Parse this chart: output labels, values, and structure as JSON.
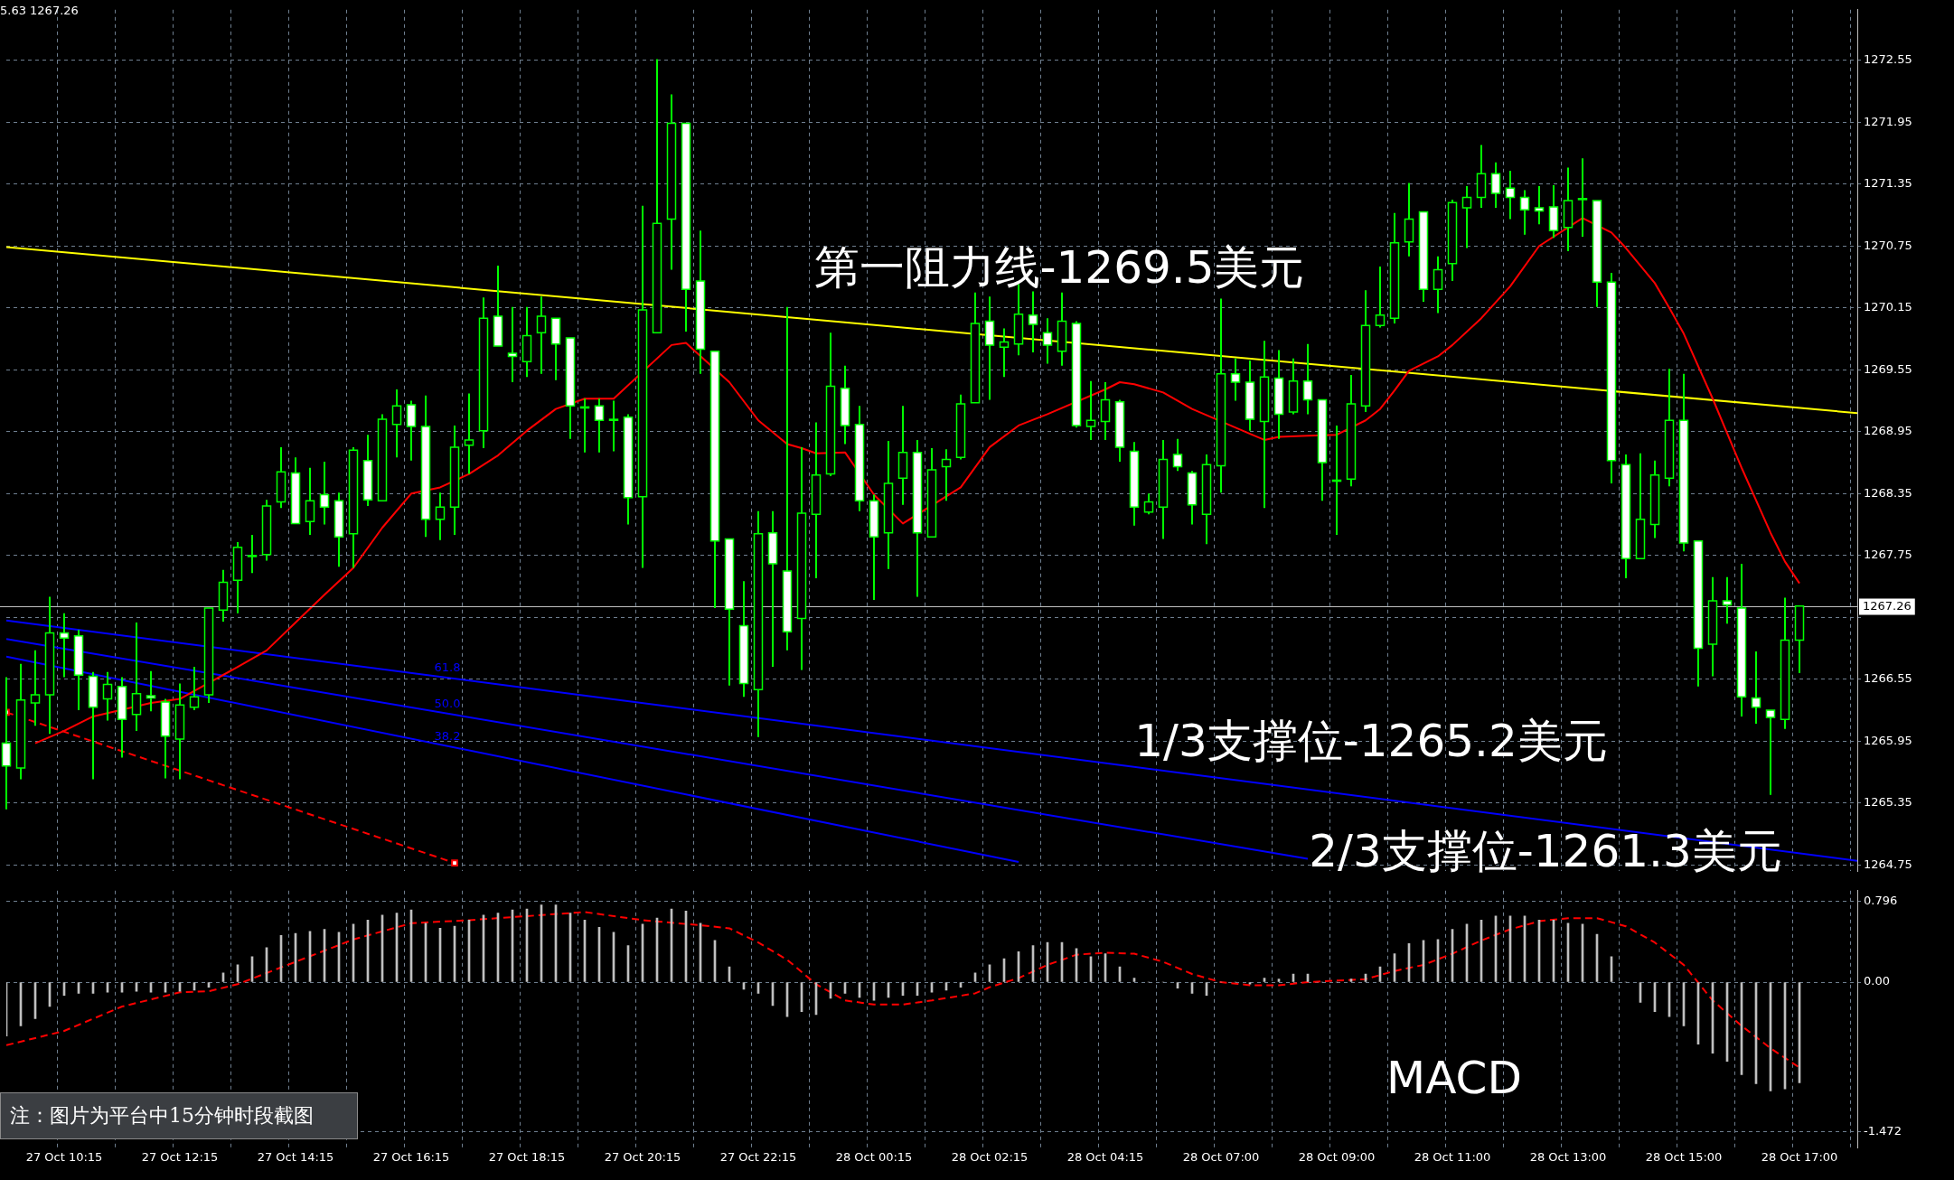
{
  "chart_data": [
    {
      "type": "candlestick",
      "color": "#00ff00",
      "colors": [
        "#ffffff",
        "#000000",
        "#000000",
        "#000000",
        "#ffffff",
        "#ffffff",
        "#ffffff",
        "#000000",
        "#ffffff",
        "#000000",
        "#ffffff",
        "#ffffff",
        "#000000",
        "#000000",
        "#000000",
        "#000000",
        "#000000",
        "#000000",
        "#000000",
        "#000000",
        "#ffffff",
        "#000000",
        "#ffffff",
        "#ffffff",
        "#000000",
        "#ffffff",
        "#000000",
        "#000000",
        "#ffffff",
        "#ffffff",
        "#000000",
        "#000000",
        "#000000",
        "#000000",
        "#ffffff",
        "#ffffff",
        "#000000",
        "#000000",
        "#ffffff",
        "#ffffff",
        "#ffffff",
        "#ffffff",
        "#ffffff",
        "#ffffff",
        "#000000",
        "#000000",
        "#000000",
        "#ffffff",
        "#ffffff",
        "#ffffff",
        "#ffffff",
        "#ffffff",
        "#000000",
        "#ffffff",
        "#ffffff",
        "#000000",
        "#000000",
        "#000000",
        "#ffffff",
        "#ffffff",
        "#ffffff",
        "#000000",
        "#000000",
        "#ffffff",
        "#000000",
        "#000000",
        "#000000",
        "#000000",
        "#ffffff",
        "#000000",
        "#000000",
        "#ffffff",
        "#ffffff",
        "#000000",
        "#ffffff",
        "#000000",
        "#000000",
        "#ffffff",
        "#ffffff",
        "#000000",
        "#000000",
        "#ffffff",
        "#ffffff",
        "#000000",
        "#000000",
        "#ffffff",
        "#ffffff",
        "#000000",
        "#ffffff",
        "#000000",
        "#ffffff",
        "#ffffff",
        "#ffffff",
        "#000000",
        "#000000",
        "#000000",
        "#000000",
        "#000000",
        "#ffffff",
        "#000000",
        "#000000",
        "#000000",
        "#000000",
        "#ffffff",
        "#ffffff",
        "#ffffff",
        "#ffffff",
        "#ffffff",
        "#000000",
        "#ffffff",
        "#ffffff",
        "#ffffff",
        "#ffffff",
        "#000000",
        "#000000",
        "#000000",
        "#ffffff",
        "#ffffff",
        "#000000",
        "#ffffff",
        "#ffffff",
        "#ffffff",
        "#ffffff",
        "#000000",
        "#000000",
        null,
        null,
        null,
        null
      ],
      "categories": [
        null,
        null,
        null,
        null,
        null,
        null,
        null,
        null,
        null,
        null,
        null,
        null,
        null,
        null,
        null,
        null,
        null,
        null,
        null,
        null,
        null,
        null,
        null,
        null,
        null,
        null,
        null,
        null,
        null,
        null,
        null,
        null,
        null,
        null,
        null,
        null,
        null,
        null,
        null,
        null,
        null,
        null,
        null,
        null,
        null,
        null,
        null,
        null,
        null,
        null,
        null,
        null,
        null,
        null,
        null,
        null,
        null,
        null,
        null,
        null,
        null,
        null,
        null,
        null,
        null,
        null,
        null,
        null,
        null,
        null,
        null,
        null,
        null,
        null,
        null,
        null,
        null,
        null,
        null,
        null,
        null,
        null,
        null,
        null,
        null,
        null,
        null,
        null,
        null,
        null,
        null,
        null,
        null,
        null,
        null,
        null,
        null,
        null,
        null,
        null,
        null,
        null,
        null,
        null,
        null,
        null,
        null,
        null,
        null,
        null,
        null,
        null,
        null,
        null,
        null,
        null,
        null,
        null,
        null,
        null,
        null,
        null,
        null,
        null,
        null,
        null,
        null,
        null,
        null
      ],
      "ohlc": [
        [
          1265.93,
          1266.57,
          1265.29,
          1265.71
        ],
        [
          1265.69,
          1266.7,
          1265.58,
          1266.35
        ],
        [
          1266.32,
          1266.83,
          1266.1,
          1266.4
        ],
        [
          1266.4,
          1267.35,
          1266.02,
          1267.0
        ],
        [
          1267.0,
          1267.19,
          1266.57,
          1266.95
        ],
        [
          1266.97,
          1267.03,
          1266.25,
          1266.59
        ],
        [
          1266.58,
          1266.62,
          1265.58,
          1266.28
        ],
        [
          1266.36,
          1266.62,
          1266.15,
          1266.5
        ],
        [
          1266.48,
          1266.57,
          1265.79,
          1266.16
        ],
        [
          1266.21,
          1267.1,
          1266.05,
          1266.41
        ],
        [
          1266.39,
          1266.63,
          1266.24,
          1266.37
        ],
        [
          1266.33,
          1266.36,
          1265.59,
          1266.0
        ],
        [
          1265.97,
          1266.51,
          1265.58,
          1266.3
        ],
        [
          1266.28,
          1266.67,
          1266.25,
          1266.38
        ],
        [
          1266.4,
          1267.25,
          1266.32,
          1267.24
        ],
        [
          1267.22,
          1267.61,
          1267.11,
          1267.49
        ],
        [
          1267.51,
          1267.88,
          1267.19,
          1267.83
        ],
        [
          1267.74,
          1267.95,
          1267.58,
          1267.75
        ],
        [
          1267.76,
          1268.29,
          1267.7,
          1268.23
        ],
        [
          1268.27,
          1268.8,
          1268.21,
          1268.56
        ],
        [
          1268.55,
          1268.7,
          1268.05,
          1268.06
        ],
        [
          1268.08,
          1268.6,
          1267.95,
          1268.28
        ],
        [
          1268.34,
          1268.66,
          1268.05,
          1268.22
        ],
        [
          1268.28,
          1268.36,
          1267.64,
          1267.93
        ],
        [
          1267.96,
          1268.8,
          1267.63,
          1268.77
        ],
        [
          1268.67,
          1268.92,
          1268.23,
          1268.29
        ],
        [
          1268.28,
          1269.12,
          1268.27,
          1269.07
        ],
        [
          1269.02,
          1269.36,
          1268.7,
          1269.2
        ],
        [
          1269.21,
          1269.25,
          1268.67,
          1269.0
        ],
        [
          1269.0,
          1269.3,
          1267.93,
          1268.1
        ],
        [
          1268.1,
          1268.36,
          1267.9,
          1268.22
        ],
        [
          1268.22,
          1269.01,
          1267.95,
          1268.8
        ],
        [
          1268.82,
          1269.32,
          1268.54,
          1268.87
        ],
        [
          1268.96,
          1270.25,
          1268.79,
          1270.05
        ],
        [
          1270.07,
          1270.56,
          1269.77,
          1269.78
        ],
        [
          1269.71,
          1270.16,
          1269.43,
          1269.68
        ],
        [
          1269.63,
          1270.16,
          1269.48,
          1269.88
        ],
        [
          1269.91,
          1270.26,
          1269.51,
          1270.07
        ],
        [
          1270.05,
          1270.06,
          1269.45,
          1269.8
        ],
        [
          1269.86,
          1269.87,
          1268.88,
          1269.2
        ],
        [
          1269.19,
          1269.27,
          1268.75,
          1269.18
        ],
        [
          1269.2,
          1269.27,
          1268.75,
          1269.06
        ],
        [
          1269.07,
          1269.25,
          1268.76,
          1269.06
        ],
        [
          1269.09,
          1269.12,
          1268.05,
          1268.31
        ],
        [
          1268.32,
          1271.14,
          1267.63,
          1270.13
        ],
        [
          1269.91,
          1272.56,
          1269.9,
          1270.97
        ],
        [
          1271.01,
          1272.22,
          1270.52,
          1271.94
        ],
        [
          1271.94,
          1271.95,
          1269.92,
          1270.33
        ],
        [
          1270.41,
          1270.9,
          1269.51,
          1269.75
        ],
        [
          1269.73,
          1269.74,
          1267.24,
          1267.89
        ],
        [
          1267.91,
          1267.92,
          1266.49,
          1267.23
        ],
        [
          1267.07,
          1267.5,
          1266.38,
          1266.51
        ],
        [
          1266.45,
          1268.18,
          1265.99,
          1267.96
        ],
        [
          1267.97,
          1268.18,
          1266.67,
          1267.67
        ],
        [
          1267.6,
          1270.16,
          1266.83,
          1267.01
        ],
        [
          1267.14,
          1268.8,
          1266.64,
          1268.16
        ],
        [
          1268.15,
          1269.04,
          1267.53,
          1268.53
        ],
        [
          1268.54,
          1269.91,
          1268.52,
          1269.39
        ],
        [
          1269.37,
          1269.59,
          1268.83,
          1269.01
        ],
        [
          1269.02,
          1269.2,
          1268.18,
          1268.28
        ],
        [
          1268.28,
          1268.34,
          1267.32,
          1267.93
        ],
        [
          1267.97,
          1268.86,
          1267.62,
          1268.45
        ],
        [
          1268.5,
          1269.2,
          1268.24,
          1268.75
        ],
        [
          1268.75,
          1268.87,
          1267.35,
          1267.97
        ],
        [
          1267.93,
          1268.79,
          1267.92,
          1268.58
        ],
        [
          1268.61,
          1268.78,
          1268.28,
          1268.68
        ],
        [
          1268.7,
          1269.31,
          1268.68,
          1269.22
        ],
        [
          1269.23,
          1270.3,
          1269.22,
          1270.0
        ],
        [
          1270.02,
          1270.26,
          1269.26,
          1269.79
        ],
        [
          1269.77,
          1269.95,
          1269.48,
          1269.82
        ],
        [
          1269.8,
          1270.38,
          1269.69,
          1270.09
        ],
        [
          1270.08,
          1270.31,
          1269.72,
          1269.99
        ],
        [
          1269.91,
          1270.05,
          1269.61,
          1269.79
        ],
        [
          1269.73,
          1270.3,
          1269.59,
          1270.02
        ],
        [
          1270.0,
          1270.02,
          1268.99,
          1269.01
        ],
        [
          1269.0,
          1269.44,
          1268.87,
          1269.06
        ],
        [
          1269.05,
          1269.43,
          1268.87,
          1269.26
        ],
        [
          1269.24,
          1269.26,
          1268.66,
          1268.8
        ],
        [
          1268.76,
          1268.85,
          1268.04,
          1268.22
        ],
        [
          1268.17,
          1268.35,
          1268.15,
          1268.27
        ],
        [
          1268.22,
          1268.87,
          1267.91,
          1268.68
        ],
        [
          1268.73,
          1268.88,
          1268.57,
          1268.61
        ],
        [
          1268.55,
          1268.57,
          1268.05,
          1268.24
        ],
        [
          1268.15,
          1268.73,
          1267.86,
          1268.63
        ],
        [
          1268.62,
          1270.24,
          1268.36,
          1269.51
        ],
        [
          1269.51,
          1269.66,
          1269.25,
          1269.43
        ],
        [
          1269.43,
          1269.64,
          1268.96,
          1269.07
        ],
        [
          1269.05,
          1269.83,
          1268.21,
          1269.48
        ],
        [
          1269.47,
          1269.74,
          1268.88,
          1269.12
        ],
        [
          1269.14,
          1269.66,
          1269.12,
          1269.44
        ],
        [
          1269.44,
          1269.8,
          1269.12,
          1269.26
        ],
        [
          1269.26,
          1269.27,
          1268.28,
          1268.65
        ],
        [
          1268.48,
          1269.01,
          1267.95,
          1268.47
        ],
        [
          1268.49,
          1269.5,
          1268.42,
          1269.22
        ],
        [
          1269.2,
          1270.32,
          1269.14,
          1269.98
        ],
        [
          1269.98,
          1270.55,
          1269.96,
          1270.08
        ],
        [
          1270.05,
          1271.07,
          1270.0,
          1270.78
        ],
        [
          1270.79,
          1271.36,
          1270.65,
          1271.01
        ],
        [
          1271.08,
          1271.09,
          1270.21,
          1270.33
        ],
        [
          1270.33,
          1270.65,
          1270.1,
          1270.52
        ],
        [
          1270.58,
          1271.2,
          1270.41,
          1271.17
        ],
        [
          1271.12,
          1271.33,
          1270.73,
          1271.22
        ],
        [
          1271.22,
          1271.73,
          1271.12,
          1271.45
        ],
        [
          1271.45,
          1271.56,
          1271.12,
          1271.26
        ],
        [
          1271.31,
          1271.48,
          1271.01,
          1271.22
        ],
        [
          1271.22,
          1271.29,
          1270.86,
          1271.1
        ],
        [
          1271.12,
          1271.33,
          1270.96,
          1271.09
        ],
        [
          1271.13,
          1271.34,
          1270.83,
          1270.9
        ],
        [
          1270.93,
          1271.51,
          1270.7,
          1271.19
        ],
        [
          1271.21,
          1271.6,
          1270.84,
          1271.2
        ],
        [
          1271.19,
          1271.2,
          1270.16,
          1270.4
        ],
        [
          1270.4,
          1270.49,
          1268.45,
          1268.67
        ],
        [
          1268.63,
          1268.73,
          1267.53,
          1267.72
        ],
        [
          1267.72,
          1268.74,
          1267.71,
          1268.1
        ],
        [
          1268.05,
          1268.67,
          1267.92,
          1268.53
        ],
        [
          1268.5,
          1269.56,
          1268.42,
          1269.06
        ],
        [
          1269.06,
          1269.51,
          1267.79,
          1267.87
        ],
        [
          1267.89,
          1267.9,
          1266.48,
          1266.85
        ],
        [
          1266.89,
          1267.54,
          1266.58,
          1267.31
        ],
        [
          1267.31,
          1267.54,
          1267.09,
          1267.27
        ],
        [
          1267.24,
          1267.67,
          1266.19,
          1266.38
        ],
        [
          1266.37,
          1266.82,
          1266.12,
          1266.28
        ],
        [
          1266.25,
          1266.26,
          1265.43,
          1266.18
        ],
        [
          1266.16,
          1267.34,
          1266.07,
          1266.93
        ],
        [
          1266.93,
          1267.26,
          1266.61,
          1267.26
        ],
        null,
        null,
        null,
        null
      ],
      "series": [
        {
          "type": "line",
          "color": "#ff0000",
          "values": [
            null,
            null,
            1265.93,
            null,
            1266.05,
            null,
            1266.19,
            null,
            null,
            null,
            1266.32,
            null,
            1266.36,
            null,
            null,
            null,
            1266.67,
            null,
            1266.83,
            null,
            1267.1,
            null,
            1267.37,
            null,
            1267.63,
            null,
            1268.02,
            null,
            1268.35,
            null,
            1268.41,
            null,
            1268.54,
            null,
            1268.72,
            null,
            1268.96,
            null,
            1269.17,
            null,
            1269.27,
            null,
            1269.27,
            null,
            null,
            null,
            1269.79,
            1269.81,
            null,
            null,
            1269.43,
            null,
            1269.06,
            null,
            1268.83,
            1268.79,
            1268.74,
            null,
            1268.75,
            null,
            1268.34,
            null,
            1268.06,
            null,
            null,
            null,
            1268.41,
            null,
            1268.8,
            null,
            1269.01,
            null,
            1269.12,
            null,
            null,
            null,
            1269.36,
            1269.43,
            1269.41,
            null,
            1269.33,
            null,
            1269.17,
            null,
            null,
            null,
            1268.93,
            1268.87,
            1268.9,
            null,
            1268.91,
            null,
            1268.92,
            null,
            1269.06,
            1269.17,
            1269.35,
            1269.54,
            1269.61,
            1269.68,
            1269.79,
            null,
            1270.05,
            null,
            1270.36,
            null,
            1270.75,
            null,
            null,
            1271.02,
            null,
            1270.88,
            1270.73,
            null,
            1270.39,
            1270.15,
            1269.9,
            null,
            1269.27,
            null,
            1268.6,
            null,
            1267.97,
            1267.69,
            1267.48,
            null,
            null,
            null,
            null
          ]
        },
        {
          "type": "line",
          "color": "#ffff00",
          "values": [
            1270.74,
            null,
            null,
            null,
            null,
            null,
            null,
            null,
            null,
            null,
            null,
            null,
            null,
            null,
            null,
            null,
            null,
            null,
            null,
            null,
            null,
            null,
            null,
            null,
            null,
            null,
            null,
            null,
            null,
            null,
            null,
            null,
            null,
            null,
            null,
            null,
            null,
            null,
            null,
            null,
            null,
            null,
            null,
            null,
            null,
            null,
            null,
            null,
            null,
            null,
            null,
            null,
            null,
            null,
            null,
            null,
            null,
            null,
            null,
            null,
            null,
            null,
            null,
            null,
            null,
            null,
            null,
            null,
            null,
            null,
            null,
            null,
            null,
            null,
            null,
            null,
            null,
            null,
            null,
            null,
            null,
            null,
            null,
            null,
            null,
            null,
            null,
            null,
            null,
            null,
            null,
            null,
            null,
            null,
            null,
            null,
            null,
            null,
            null,
            null,
            null,
            null,
            null,
            null,
            null,
            null,
            null,
            null,
            null,
            null,
            null,
            null,
            null,
            null,
            null,
            null,
            null,
            null,
            null,
            null,
            null,
            null,
            null,
            null,
            null,
            null,
            null,
            null,
            1269.13
          ]
        },
        {
          "type": "line",
          "name": "61.8",
          "color": "#0000ff",
          "values": [
            1267.12,
            null,
            null,
            null,
            null,
            null,
            null,
            null,
            null,
            null,
            null,
            null,
            null,
            null,
            null,
            null,
            null,
            null,
            null,
            null,
            null,
            null,
            null,
            null,
            null,
            null,
            null,
            null,
            null,
            null,
            null,
            null,
            null,
            null,
            null,
            null,
            null,
            null,
            null,
            null,
            null,
            null,
            null,
            null,
            null,
            null,
            null,
            null,
            null,
            null,
            null,
            null,
            null,
            null,
            null,
            null,
            null,
            null,
            null,
            null,
            null,
            null,
            null,
            null,
            null,
            null,
            null,
            null,
            null,
            null,
            null,
            null,
            null,
            null,
            null,
            null,
            null,
            null,
            null,
            null,
            null,
            null,
            null,
            null,
            null,
            null,
            null,
            null,
            null,
            null,
            null,
            null,
            null,
            null,
            null,
            null,
            null,
            null,
            null,
            null,
            null,
            null,
            null,
            null,
            null,
            null,
            null,
            null,
            null,
            null,
            null,
            null,
            null,
            null,
            null,
            null,
            null,
            null,
            null,
            null,
            null,
            null,
            null,
            null,
            null,
            null,
            null,
            null,
            1264.79
          ]
        },
        {
          "type": "line",
          "name": "50.0",
          "color": "#0000ff",
          "values": [
            1266.94,
            null,
            null,
            null,
            null,
            null,
            null,
            null,
            null,
            null,
            null,
            null,
            null,
            null,
            null,
            null,
            null,
            null,
            null,
            null,
            null,
            null,
            null,
            null,
            null,
            null,
            null,
            null,
            null,
            null,
            null,
            null,
            null,
            null,
            null,
            null,
            null,
            null,
            null,
            null,
            null,
            null,
            null,
            null,
            null,
            null,
            null,
            null,
            null,
            null,
            null,
            null,
            null,
            null,
            null,
            null,
            null,
            null,
            null,
            null,
            null,
            null,
            null,
            null,
            null,
            null,
            null,
            null,
            null,
            null,
            null,
            null,
            null,
            null,
            null,
            null,
            null,
            null,
            null,
            null,
            null,
            null,
            null,
            null,
            null,
            null,
            null,
            null,
            null,
            null,
            1264.81,
            null,
            null,
            null,
            null,
            null,
            null,
            null,
            null,
            null,
            null,
            null,
            null,
            null,
            null,
            null,
            null,
            null,
            null,
            null,
            null,
            null,
            null,
            null,
            null,
            null,
            null,
            null,
            null,
            null,
            null,
            null,
            null,
            null,
            null,
            null,
            null,
            null,
            null
          ]
        },
        {
          "type": "line",
          "name": "38.2",
          "color": "#0000ff",
          "values": [
            1266.77,
            null,
            null,
            null,
            null,
            null,
            null,
            null,
            null,
            null,
            null,
            null,
            null,
            null,
            null,
            null,
            null,
            null,
            null,
            null,
            null,
            null,
            null,
            null,
            null,
            null,
            null,
            null,
            null,
            null,
            null,
            null,
            null,
            null,
            null,
            null,
            null,
            null,
            null,
            null,
            null,
            null,
            null,
            null,
            null,
            null,
            null,
            null,
            null,
            null,
            null,
            null,
            null,
            null,
            null,
            null,
            null,
            null,
            null,
            null,
            null,
            null,
            null,
            null,
            null,
            null,
            null,
            null,
            null,
            null,
            1264.78,
            null,
            null,
            null,
            null,
            null,
            null,
            null,
            null,
            null,
            null,
            null,
            null,
            null,
            null,
            null,
            null,
            null,
            null,
            null,
            null,
            null,
            null,
            null,
            null,
            null,
            null,
            null,
            null,
            null,
            null,
            null,
            null,
            null,
            null,
            null,
            null,
            null,
            null,
            null,
            null,
            null,
            null,
            null,
            null,
            null,
            null,
            null,
            null,
            null,
            null,
            null,
            null,
            null,
            null,
            null,
            null,
            null,
            null
          ]
        },
        {
          "type": "line",
          "color": "#ff0000",
          "line_style": "dashed",
          "marker": "square",
          "values": [
            1266.23,
            null,
            null,
            null,
            null,
            null,
            null,
            null,
            null,
            null,
            null,
            null,
            null,
            null,
            null,
            null,
            null,
            null,
            null,
            null,
            null,
            null,
            null,
            null,
            null,
            null,
            null,
            null,
            null,
            null,
            null,
            1264.77,
            null,
            null,
            null,
            null,
            null,
            null,
            null,
            null,
            null,
            null,
            null,
            null,
            null,
            null,
            null,
            null,
            null,
            null,
            null,
            null,
            null,
            null,
            null,
            null,
            null,
            null,
            null,
            null,
            null,
            null,
            null,
            null,
            null,
            null,
            null,
            null,
            null,
            null,
            null,
            null,
            null,
            null,
            null,
            null,
            null,
            null,
            null,
            null,
            null,
            null,
            null,
            null,
            null,
            null,
            null,
            null,
            null,
            null,
            null,
            null,
            null,
            null,
            null,
            null,
            null,
            null,
            null,
            null,
            null,
            null,
            null,
            null,
            null,
            null,
            null,
            null,
            null,
            null,
            null,
            null,
            null,
            null,
            null,
            null,
            null,
            null,
            null,
            null,
            null,
            null,
            null,
            null,
            null,
            null,
            null,
            null,
            null
          ]
        }
      ],
      "ylim": [
        1264.69,
        1273.04
      ],
      "yticks": [
        1264.75,
        1265.35,
        1265.95,
        1266.55,
        {
          "value": 1267.15,
          "label": null
        },
        1267.75,
        1268.35,
        1268.95,
        1269.55,
        1270.15,
        1270.75,
        1271.35,
        1271.95,
        1272.55
      ],
      "ref_lines": [
        {
          "axis": "y",
          "value": 1267.26,
          "label": "1267.26",
          "color": "#c0c0c0"
        }
      ],
      "annotations": [
        "5.63 1267.26",
        "第一阻力线-1269.5美元",
        "1/3支撑位-1265.2美元",
        "2/3支撑位-1261.3美元"
      ],
      "grid": true,
      "legend": false,
      "tick_labels": "y"
    },
    {
      "type": "bar",
      "title": "MACD",
      "categories": [
        null,
        null,
        null,
        null,
        "27 Oct 10:15",
        null,
        null,
        null,
        null,
        null,
        null,
        null,
        "27 Oct 12:15",
        null,
        null,
        null,
        null,
        null,
        null,
        null,
        "27 Oct 14:15",
        null,
        null,
        null,
        null,
        null,
        null,
        null,
        "27 Oct 16:15",
        null,
        null,
        null,
        null,
        null,
        null,
        null,
        "27 Oct 18:15",
        null,
        null,
        null,
        null,
        null,
        null,
        null,
        "27 Oct 20:15",
        null,
        null,
        null,
        null,
        null,
        null,
        null,
        "27 Oct 22:15",
        null,
        null,
        null,
        null,
        null,
        null,
        null,
        "28 Oct 00:15",
        null,
        null,
        null,
        null,
        null,
        null,
        null,
        "28 Oct 02:15",
        null,
        null,
        null,
        null,
        null,
        null,
        null,
        "28 Oct 04:15",
        null,
        null,
        null,
        null,
        null,
        null,
        null,
        "28 Oct 07:00",
        null,
        null,
        null,
        null,
        null,
        null,
        null,
        "28 Oct 09:00",
        null,
        null,
        null,
        null,
        null,
        null,
        null,
        "28 Oct 11:00",
        null,
        null,
        null,
        null,
        null,
        null,
        null,
        "28 Oct 13:00",
        null,
        null,
        null,
        null,
        null,
        null,
        null,
        "28 Oct 15:00",
        null,
        null,
        null,
        null,
        null,
        null,
        null,
        "28 Oct 17:00",
        null,
        null,
        null,
        null
      ],
      "series": [
        {
          "type": "bar",
          "color": "#c0c0c0",
          "values": [
            -0.53,
            -0.43,
            -0.36,
            -0.24,
            -0.13,
            -0.11,
            -0.11,
            -0.1,
            -0.1,
            -0.09,
            -0.1,
            -0.1,
            -0.09,
            -0.08,
            -0.05,
            0.09,
            0.17,
            0.25,
            0.34,
            0.46,
            0.48,
            0.5,
            0.52,
            0.49,
            0.57,
            0.61,
            0.66,
            0.68,
            0.71,
            0.58,
            0.53,
            0.55,
            0.61,
            0.66,
            0.68,
            0.71,
            0.72,
            0.76,
            0.76,
            0.68,
            0.61,
            0.54,
            0.49,
            0.36,
            0.57,
            0.63,
            0.72,
            0.7,
            0.58,
            0.41,
            0.15,
            -0.07,
            -0.11,
            -0.23,
            -0.34,
            -0.29,
            -0.32,
            -0.16,
            -0.11,
            -0.15,
            -0.18,
            -0.15,
            -0.13,
            -0.13,
            -0.1,
            -0.08,
            -0.05,
            0.09,
            0.17,
            0.23,
            0.3,
            0.36,
            0.39,
            0.39,
            0.33,
            0.25,
            0.28,
            0.15,
            0.04,
            0,
            0,
            -0.06,
            -0.11,
            -0.13,
            0,
            0,
            -0.02,
            0.04,
            0.03,
            0.08,
            0.08,
            0,
            0,
            0.03,
            0.08,
            0.15,
            0.28,
            0.38,
            0.41,
            0.42,
            0.52,
            0.57,
            0.61,
            0.65,
            0.65,
            0.65,
            0.61,
            0.61,
            0.58,
            0.57,
            0.47,
            0.25,
            0,
            -0.2,
            -0.29,
            -0.34,
            -0.43,
            -0.61,
            -0.7,
            -0.78,
            -0.91,
            -1.0,
            -1.07,
            -1.05,
            -0.99,
            null,
            null,
            null,
            null
          ]
        },
        {
          "type": "line",
          "color": "#ff0000",
          "line_style": "dashed",
          "values": [
            -0.62,
            null,
            null,
            null,
            -0.48,
            null,
            null,
            null,
            -0.24,
            null,
            null,
            null,
            -0.1,
            null,
            -0.09,
            null,
            -0.02,
            null,
            null,
            null,
            0.2,
            null,
            null,
            null,
            0.42,
            null,
            null,
            null,
            0.58,
            null,
            null,
            null,
            0.61,
            null,
            null,
            null,
            0.65,
            null,
            null,
            null,
            0.69,
            null,
            null,
            null,
            0.61,
            null,
            null,
            null,
            0.56,
            null,
            0.53,
            null,
            0.39,
            null,
            0.22,
            null,
            -0.02,
            null,
            -0.18,
            null,
            -0.22,
            null,
            -0.22,
            null,
            -0.18,
            null,
            null,
            -0.11,
            -0.05,
            null,
            0.04,
            null,
            0.17,
            null,
            0.27,
            null,
            0.29,
            null,
            0.28,
            null,
            0.2,
            null,
            0.08,
            null,
            0.0,
            null,
            -0.03,
            null,
            -0.03,
            null,
            0.0,
            null,
            null,
            null,
            0.03,
            null,
            0.11,
            null,
            0.17,
            null,
            0.28,
            null,
            0.41,
            null,
            0.52,
            null,
            0.6,
            null,
            0.63,
            null,
            0.63,
            null,
            0.55,
            null,
            0.39,
            null,
            0.17,
            null,
            -0.18,
            null,
            -0.43,
            null,
            -0.65,
            null,
            -0.84,
            null,
            null,
            null,
            null
          ]
        }
      ],
      "ylim": [
        -1.63,
        0.9
      ],
      "yticks": [
        -1.472,
        {
          "value": 0,
          "label": "0.00"
        },
        0.796
      ],
      "annotations": [
        "注：图片为平台中15分钟时段截图"
      ],
      "grid": true,
      "legend": false
    }
  ]
}
